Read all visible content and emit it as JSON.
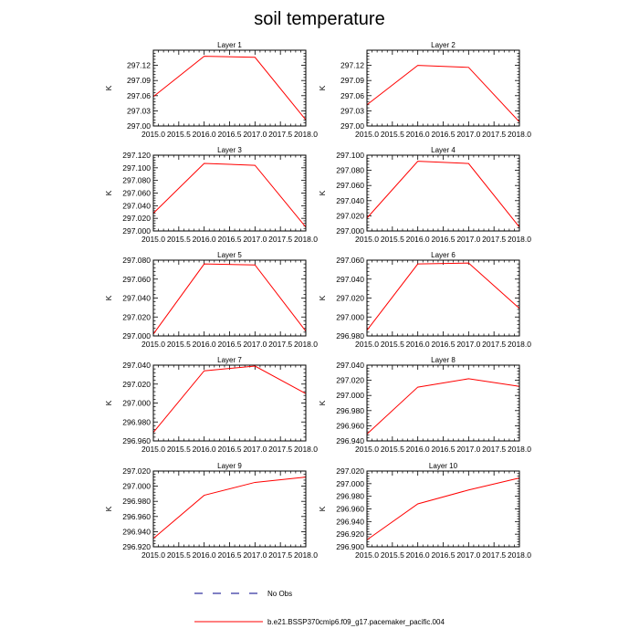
{
  "title": "soil temperature",
  "colors": {
    "series": "#ff0000",
    "obs": "#000088",
    "axis": "#000000"
  },
  "legend": {
    "items": [
      {
        "label": "No Obs",
        "style": "dashed"
      },
      {
        "label": "b.e21.BSSP370cmip6.f09_g17.pacemaker_pacific.004",
        "style": "solid"
      }
    ]
  },
  "chart_data": [
    {
      "type": "line",
      "title": "Layer 1",
      "xlabel": "",
      "ylabel": "K",
      "x": [
        2015.0,
        2016.0,
        2017.0,
        2018.0
      ],
      "values": [
        297.058,
        297.138,
        297.136,
        297.012
      ],
      "xlim": [
        2015.0,
        2018.0
      ],
      "ylim": [
        297.0,
        297.15
      ],
      "xticks": [
        2015.0,
        2015.5,
        2016.0,
        2016.5,
        2017.0,
        2017.5,
        2018.0
      ],
      "xtick_labels": [
        "2015.0",
        "2015.5",
        "2016.0",
        "2016.5",
        "2017.0",
        "2017.5",
        "2018.0"
      ],
      "yticks": [
        297.0,
        297.03,
        297.06,
        297.09,
        297.12
      ],
      "ytick_labels": [
        "297.00",
        "297.03",
        "297.06",
        "297.09",
        "297.12"
      ]
    },
    {
      "type": "line",
      "title": "Layer 2",
      "xlabel": "",
      "ylabel": "K",
      "x": [
        2015.0,
        2016.0,
        2017.0,
        2018.0
      ],
      "values": [
        297.042,
        297.12,
        297.116,
        297.008
      ],
      "xlim": [
        2015.0,
        2018.0
      ],
      "ylim": [
        297.0,
        297.15
      ],
      "xticks": [
        2015.0,
        2015.5,
        2016.0,
        2016.5,
        2017.0,
        2017.5,
        2018.0
      ],
      "xtick_labels": [
        "2015.0",
        "2015.5",
        "2016.0",
        "2016.5",
        "2017.0",
        "2017.5",
        "2018.0"
      ],
      "yticks": [
        297.0,
        297.03,
        297.06,
        297.09,
        297.12
      ],
      "ytick_labels": [
        "297.00",
        "297.03",
        "297.06",
        "297.09",
        "297.12"
      ]
    },
    {
      "type": "line",
      "title": "Layer 3",
      "xlabel": "",
      "ylabel": "K",
      "x": [
        2015.0,
        2016.0,
        2017.0,
        2018.0
      ],
      "values": [
        297.028,
        297.107,
        297.104,
        297.006
      ],
      "xlim": [
        2015.0,
        2018.0
      ],
      "ylim": [
        297.0,
        297.12
      ],
      "xticks": [
        2015.0,
        2015.5,
        2016.0,
        2016.5,
        2017.0,
        2017.5,
        2018.0
      ],
      "xtick_labels": [
        "2015.0",
        "2015.5",
        "2016.0",
        "2016.5",
        "2017.0",
        "2017.5",
        "2018.0"
      ],
      "yticks": [
        297.0,
        297.02,
        297.04,
        297.06,
        297.08,
        297.1,
        297.12
      ],
      "ytick_labels": [
        "297.000",
        "297.020",
        "297.040",
        "297.060",
        "297.080",
        "297.100",
        "297.120"
      ]
    },
    {
      "type": "line",
      "title": "Layer 4",
      "xlabel": "",
      "ylabel": "K",
      "x": [
        2015.0,
        2016.0,
        2017.0,
        2018.0
      ],
      "values": [
        297.017,
        297.092,
        297.089,
        297.005
      ],
      "xlim": [
        2015.0,
        2018.0
      ],
      "ylim": [
        297.0,
        297.1
      ],
      "xticks": [
        2015.0,
        2015.5,
        2016.0,
        2016.5,
        2017.0,
        2017.5,
        2018.0
      ],
      "xtick_labels": [
        "2015.0",
        "2015.5",
        "2016.0",
        "2016.5",
        "2017.0",
        "2017.5",
        "2018.0"
      ],
      "yticks": [
        297.0,
        297.02,
        297.04,
        297.06,
        297.08,
        297.1
      ],
      "ytick_labels": [
        "297.000",
        "297.020",
        "297.040",
        "297.060",
        "297.080",
        "297.100"
      ]
    },
    {
      "type": "line",
      "title": "Layer 5",
      "xlabel": "",
      "ylabel": "K",
      "x": [
        2015.0,
        2016.0,
        2017.0,
        2018.0
      ],
      "values": [
        297.002,
        297.076,
        297.075,
        297.005
      ],
      "xlim": [
        2015.0,
        2018.0
      ],
      "ylim": [
        297.0,
        297.08
      ],
      "xticks": [
        2015.0,
        2015.5,
        2016.0,
        2016.5,
        2017.0,
        2017.5,
        2018.0
      ],
      "xtick_labels": [
        "2015.0",
        "2015.5",
        "2016.0",
        "2016.5",
        "2017.0",
        "2017.5",
        "2018.0"
      ],
      "yticks": [
        297.0,
        297.02,
        297.04,
        297.06,
        297.08
      ],
      "ytick_labels": [
        "297.000",
        "297.020",
        "297.040",
        "297.060",
        "297.080"
      ]
    },
    {
      "type": "line",
      "title": "Layer 6",
      "xlabel": "",
      "ylabel": "K",
      "x": [
        2015.0,
        2016.0,
        2017.0,
        2018.0
      ],
      "values": [
        296.986,
        297.056,
        297.057,
        297.009
      ],
      "xlim": [
        2015.0,
        2018.0
      ],
      "ylim": [
        296.98,
        297.06
      ],
      "xticks": [
        2015.0,
        2015.5,
        2016.0,
        2016.5,
        2017.0,
        2017.5,
        2018.0
      ],
      "xtick_labels": [
        "2015.0",
        "2015.5",
        "2016.0",
        "2016.5",
        "2017.0",
        "2017.5",
        "2018.0"
      ],
      "yticks": [
        296.98,
        297.0,
        297.02,
        297.04,
        297.06
      ],
      "ytick_labels": [
        "296.980",
        "297.000",
        "297.020",
        "297.040",
        "297.060"
      ]
    },
    {
      "type": "line",
      "title": "Layer 7",
      "xlabel": "",
      "ylabel": "K",
      "x": [
        2015.0,
        2016.0,
        2017.0,
        2018.0
      ],
      "values": [
        296.969,
        297.034,
        297.039,
        297.01
      ],
      "xlim": [
        2015.0,
        2018.0
      ],
      "ylim": [
        296.96,
        297.04
      ],
      "xticks": [
        2015.0,
        2015.5,
        2016.0,
        2016.5,
        2017.0,
        2017.5,
        2018.0
      ],
      "xtick_labels": [
        "2015.0",
        "2015.5",
        "2016.0",
        "2016.5",
        "2017.0",
        "2017.5",
        "2018.0"
      ],
      "yticks": [
        296.96,
        296.98,
        297.0,
        297.02,
        297.04
      ],
      "ytick_labels": [
        "296.960",
        "296.980",
        "297.000",
        "297.020",
        "297.040"
      ]
    },
    {
      "type": "line",
      "title": "Layer 8",
      "xlabel": "",
      "ylabel": "K",
      "x": [
        2015.0,
        2016.0,
        2017.0,
        2018.0
      ],
      "values": [
        296.949,
        297.011,
        297.022,
        297.012
      ],
      "xlim": [
        2015.0,
        2018.0
      ],
      "ylim": [
        296.94,
        297.04
      ],
      "xticks": [
        2015.0,
        2015.5,
        2016.0,
        2016.5,
        2017.0,
        2017.5,
        2018.0
      ],
      "xtick_labels": [
        "2015.0",
        "2015.5",
        "2016.0",
        "2016.5",
        "2017.0",
        "2017.5",
        "2018.0"
      ],
      "yticks": [
        296.94,
        296.96,
        296.98,
        297.0,
        297.02,
        297.04
      ],
      "ytick_labels": [
        "296.940",
        "296.960",
        "296.980",
        "297.000",
        "297.020",
        "297.040"
      ]
    },
    {
      "type": "line",
      "title": "Layer 9",
      "xlabel": "",
      "ylabel": "K",
      "x": [
        2015.0,
        2016.0,
        2017.0,
        2018.0
      ],
      "values": [
        296.931,
        296.988,
        297.005,
        297.012
      ],
      "xlim": [
        2015.0,
        2018.0
      ],
      "ylim": [
        296.92,
        297.02
      ],
      "xticks": [
        2015.0,
        2015.5,
        2016.0,
        2016.5,
        2017.0,
        2017.5,
        2018.0
      ],
      "xtick_labels": [
        "2015.0",
        "2015.5",
        "2016.0",
        "2016.5",
        "2017.0",
        "2017.5",
        "2018.0"
      ],
      "yticks": [
        296.92,
        296.94,
        296.96,
        296.98,
        297.0,
        297.02
      ],
      "ytick_labels": [
        "296.920",
        "296.940",
        "296.960",
        "296.980",
        "297.000",
        "297.020"
      ]
    },
    {
      "type": "line",
      "title": "Layer 10",
      "xlabel": "",
      "ylabel": "K",
      "x": [
        2015.0,
        2016.0,
        2017.0,
        2018.0
      ],
      "values": [
        296.911,
        296.968,
        296.99,
        297.009
      ],
      "xlim": [
        2015.0,
        2018.0
      ],
      "ylim": [
        296.9,
        297.02
      ],
      "xticks": [
        2015.0,
        2015.5,
        2016.0,
        2016.5,
        2017.0,
        2017.5,
        2018.0
      ],
      "xtick_labels": [
        "2015.0",
        "2015.5",
        "2016.0",
        "2016.5",
        "2017.0",
        "2017.5",
        "2018.0"
      ],
      "yticks": [
        296.9,
        296.92,
        296.94,
        296.96,
        296.98,
        297.0,
        297.02
      ],
      "ytick_labels": [
        "296.900",
        "296.920",
        "296.940",
        "296.960",
        "296.980",
        "297.000",
        "297.020"
      ]
    }
  ]
}
